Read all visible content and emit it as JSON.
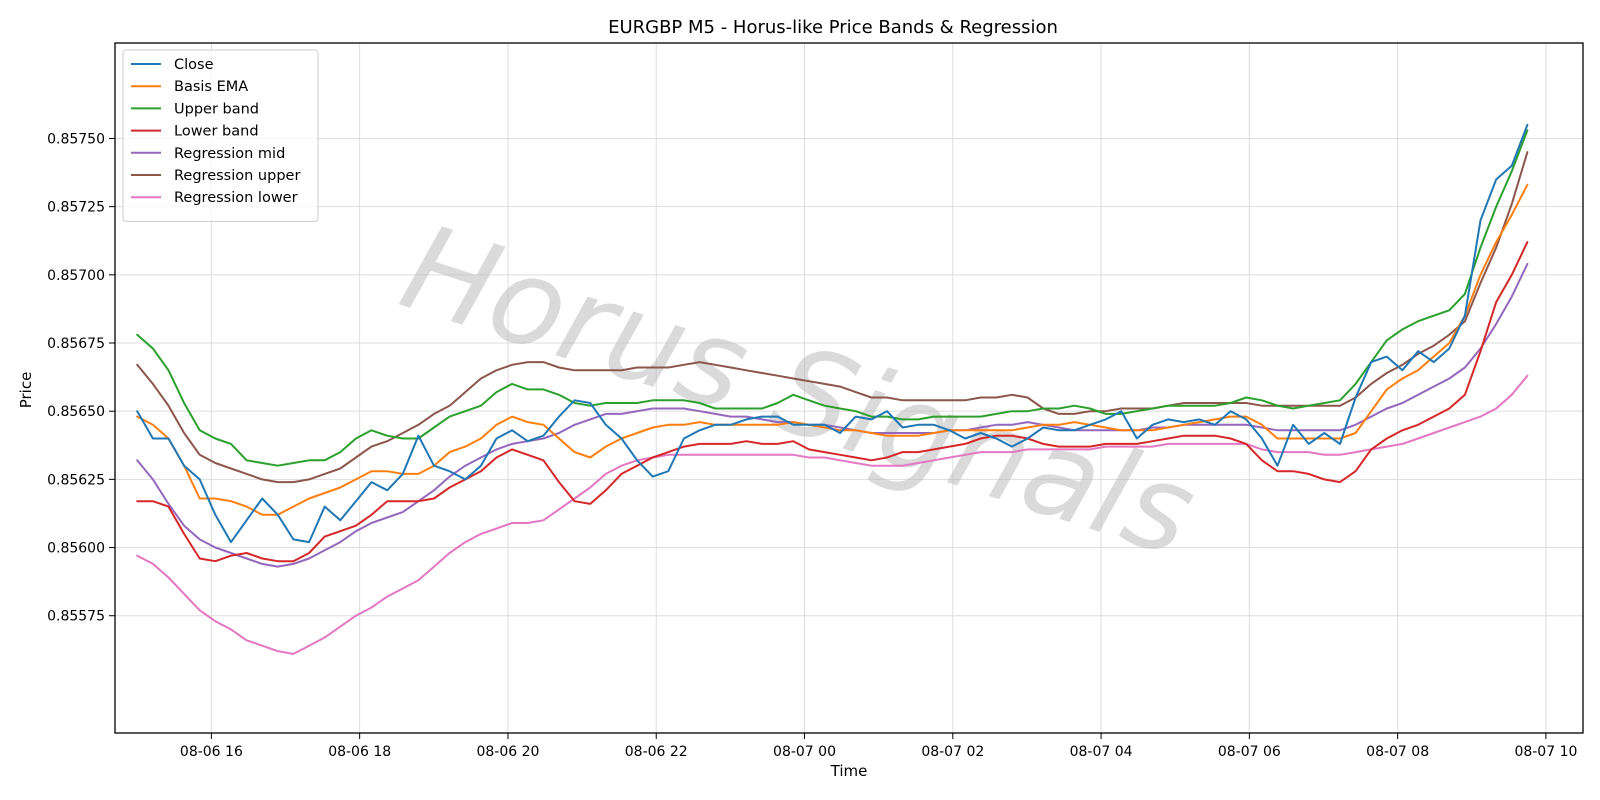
{
  "chart_data": {
    "type": "line",
    "title": "EURGBP M5 - Horus-like Price Bands & Regression",
    "xlabel": "Time",
    "ylabel": "Price",
    "watermark": "Horus Signals",
    "grid": true,
    "legend_position": "top-left",
    "xlim": [
      "08-06 14:42",
      "08-07 10:30"
    ],
    "ylim": [
      0.85532,
      0.85785
    ],
    "x_ticks": [
      "08-06 16",
      "08-06 18",
      "08-06 20",
      "08-06 22",
      "08-07 00",
      "08-07 02",
      "08-07 04",
      "08-07 06",
      "08-07 08",
      "08-07 10"
    ],
    "y_ticks": [
      "0.85575",
      "0.85600",
      "0.85625",
      "0.85650",
      "0.85675",
      "0.85700",
      "0.85725",
      "0.85750"
    ],
    "x_start": "08-06 15:00",
    "x_end": "08-07 09:45",
    "x_step_minutes": 15,
    "series": [
      {
        "name": "Close",
        "color": "#1f77b4",
        "values": [
          0.8565,
          0.8564,
          0.8564,
          0.8563,
          0.85625,
          0.85612,
          0.85602,
          0.8561,
          0.85618,
          0.85612,
          0.85603,
          0.85602,
          0.85615,
          0.8561,
          0.85617,
          0.85624,
          0.85621,
          0.85627,
          0.85641,
          0.8563,
          0.85628,
          0.85625,
          0.8563,
          0.8564,
          0.85643,
          0.85639,
          0.85641,
          0.85648,
          0.85654,
          0.85653,
          0.85645,
          0.8564,
          0.85632,
          0.85626,
          0.85628,
          0.8564,
          0.85643,
          0.85645,
          0.85645,
          0.85647,
          0.85648,
          0.85648,
          0.85645,
          0.85645,
          0.85645,
          0.85642,
          0.85648,
          0.85647,
          0.8565,
          0.85644,
          0.85645,
          0.85645,
          0.85643,
          0.8564,
          0.85642,
          0.8564,
          0.85637,
          0.8564,
          0.85644,
          0.85643,
          0.85643,
          0.85645,
          0.85647,
          0.8565,
          0.8564,
          0.85645,
          0.85647,
          0.85646,
          0.85647,
          0.85645,
          0.8565,
          0.85647,
          0.8564,
          0.8563,
          0.85645,
          0.85638,
          0.85642,
          0.85638,
          0.85655,
          0.85668,
          0.8567,
          0.85665,
          0.85672,
          0.85668,
          0.85673,
          0.85685,
          0.8572,
          0.85735,
          0.8574,
          0.85755
        ]
      },
      {
        "name": "Basis EMA",
        "color": "#ff7f0e",
        "values": [
          0.85648,
          0.85645,
          0.8564,
          0.8563,
          0.85618,
          0.85618,
          0.85617,
          0.85615,
          0.85612,
          0.85612,
          0.85615,
          0.85618,
          0.8562,
          0.85622,
          0.85625,
          0.85628,
          0.85628,
          0.85627,
          0.85627,
          0.8563,
          0.85635,
          0.85637,
          0.8564,
          0.85645,
          0.85648,
          0.85646,
          0.85645,
          0.8564,
          0.85635,
          0.85633,
          0.85637,
          0.8564,
          0.85642,
          0.85644,
          0.85645,
          0.85645,
          0.85646,
          0.85645,
          0.85645,
          0.85645,
          0.85645,
          0.85645,
          0.85646,
          0.85645,
          0.85644,
          0.85643,
          0.85643,
          0.85642,
          0.85641,
          0.85641,
          0.85641,
          0.85642,
          0.85643,
          0.85643,
          0.85643,
          0.85643,
          0.85643,
          0.85644,
          0.85645,
          0.85645,
          0.85646,
          0.85645,
          0.85644,
          0.85643,
          0.85643,
          0.85643,
          0.85644,
          0.85645,
          0.85646,
          0.85647,
          0.85648,
          0.85648,
          0.85645,
          0.8564,
          0.8564,
          0.8564,
          0.8564,
          0.8564,
          0.85642,
          0.8565,
          0.85658,
          0.85662,
          0.85665,
          0.8567,
          0.85675,
          0.85685,
          0.857,
          0.85712,
          0.85722,
          0.85733
        ]
      },
      {
        "name": "Upper band",
        "color": "#2ca02c",
        "values": [
          0.85678,
          0.85673,
          0.85665,
          0.85653,
          0.85643,
          0.8564,
          0.85638,
          0.85632,
          0.85631,
          0.8563,
          0.85631,
          0.85632,
          0.85632,
          0.85635,
          0.8564,
          0.85643,
          0.85641,
          0.8564,
          0.8564,
          0.85644,
          0.85648,
          0.8565,
          0.85652,
          0.85657,
          0.8566,
          0.85658,
          0.85658,
          0.85656,
          0.85653,
          0.85652,
          0.85653,
          0.85653,
          0.85653,
          0.85654,
          0.85654,
          0.85654,
          0.85653,
          0.85651,
          0.85651,
          0.85651,
          0.85651,
          0.85653,
          0.85656,
          0.85654,
          0.85652,
          0.85651,
          0.8565,
          0.85648,
          0.85648,
          0.85647,
          0.85647,
          0.85648,
          0.85648,
          0.85648,
          0.85648,
          0.85649,
          0.8565,
          0.8565,
          0.85651,
          0.85651,
          0.85652,
          0.85651,
          0.85649,
          0.85649,
          0.8565,
          0.85651,
          0.85652,
          0.85652,
          0.85652,
          0.85652,
          0.85653,
          0.85655,
          0.85654,
          0.85652,
          0.85651,
          0.85652,
          0.85653,
          0.85654,
          0.8566,
          0.85668,
          0.85676,
          0.8568,
          0.85683,
          0.85685,
          0.85687,
          0.85693,
          0.8571,
          0.85725,
          0.85738,
          0.85753
        ]
      },
      {
        "name": "Lower band",
        "color": "#d62728",
        "values": [
          0.85617,
          0.85617,
          0.85615,
          0.85605,
          0.85596,
          0.85595,
          0.85597,
          0.85598,
          0.85596,
          0.85595,
          0.85595,
          0.85598,
          0.85604,
          0.85606,
          0.85608,
          0.85612,
          0.85617,
          0.85617,
          0.85617,
          0.85618,
          0.85622,
          0.85625,
          0.85628,
          0.85633,
          0.85636,
          0.85634,
          0.85632,
          0.85624,
          0.85617,
          0.85616,
          0.85621,
          0.85627,
          0.8563,
          0.85633,
          0.85635,
          0.85637,
          0.85638,
          0.85638,
          0.85638,
          0.85639,
          0.85638,
          0.85638,
          0.85639,
          0.85636,
          0.85635,
          0.85634,
          0.85633,
          0.85632,
          0.85633,
          0.85635,
          0.85635,
          0.85636,
          0.85637,
          0.85638,
          0.8564,
          0.85641,
          0.85641,
          0.8564,
          0.85638,
          0.85637,
          0.85637,
          0.85637,
          0.85638,
          0.85638,
          0.85638,
          0.85639,
          0.8564,
          0.85641,
          0.85641,
          0.85641,
          0.8564,
          0.85638,
          0.85632,
          0.85628,
          0.85628,
          0.85627,
          0.85625,
          0.85624,
          0.85628,
          0.85636,
          0.8564,
          0.85643,
          0.85645,
          0.85648,
          0.85651,
          0.85656,
          0.85672,
          0.8569,
          0.857,
          0.85712
        ]
      },
      {
        "name": "Regression mid",
        "color": "#9467bd",
        "values": [
          0.85632,
          0.85625,
          0.85616,
          0.85608,
          0.85603,
          0.856,
          0.85598,
          0.85596,
          0.85594,
          0.85593,
          0.85594,
          0.85596,
          0.85599,
          0.85602,
          0.85606,
          0.85609,
          0.85611,
          0.85613,
          0.85617,
          0.85621,
          0.85626,
          0.8563,
          0.85633,
          0.85636,
          0.85638,
          0.85639,
          0.8564,
          0.85642,
          0.85645,
          0.85647,
          0.85649,
          0.85649,
          0.8565,
          0.85651,
          0.85651,
          0.85651,
          0.8565,
          0.85649,
          0.85648,
          0.85648,
          0.85647,
          0.85646,
          0.85646,
          0.85645,
          0.85645,
          0.85644,
          0.85643,
          0.85642,
          0.85642,
          0.85642,
          0.85642,
          0.85642,
          0.85643,
          0.85643,
          0.85644,
          0.85645,
          0.85645,
          0.85646,
          0.85645,
          0.85644,
          0.85643,
          0.85643,
          0.85643,
          0.85643,
          0.85643,
          0.85644,
          0.85644,
          0.85645,
          0.85645,
          0.85645,
          0.85645,
          0.85645,
          0.85644,
          0.85643,
          0.85643,
          0.85643,
          0.85643,
          0.85643,
          0.85645,
          0.85648,
          0.85651,
          0.85653,
          0.85656,
          0.85659,
          0.85662,
          0.85666,
          0.85673,
          0.85682,
          0.85692,
          0.85704
        ]
      },
      {
        "name": "Regression upper",
        "color": "#8c564b",
        "values": [
          0.85667,
          0.8566,
          0.85652,
          0.85642,
          0.85634,
          0.85631,
          0.85629,
          0.85627,
          0.85625,
          0.85624,
          0.85624,
          0.85625,
          0.85627,
          0.85629,
          0.85633,
          0.85637,
          0.85639,
          0.85642,
          0.85645,
          0.85649,
          0.85652,
          0.85657,
          0.85662,
          0.85665,
          0.85667,
          0.85668,
          0.85668,
          0.85666,
          0.85665,
          0.85665,
          0.85665,
          0.85665,
          0.85666,
          0.85666,
          0.85666,
          0.85667,
          0.85668,
          0.85667,
          0.85666,
          0.85665,
          0.85664,
          0.85663,
          0.85662,
          0.85661,
          0.8566,
          0.85659,
          0.85657,
          0.85655,
          0.85655,
          0.85654,
          0.85654,
          0.85654,
          0.85654,
          0.85654,
          0.85655,
          0.85655,
          0.85656,
          0.85655,
          0.85651,
          0.85649,
          0.85649,
          0.8565,
          0.8565,
          0.85651,
          0.85651,
          0.85651,
          0.85652,
          0.85653,
          0.85653,
          0.85653,
          0.85653,
          0.85653,
          0.85652,
          0.85652,
          0.85652,
          0.85652,
          0.85652,
          0.85652,
          0.85655,
          0.8566,
          0.85664,
          0.85667,
          0.85671,
          0.85674,
          0.85678,
          0.85683,
          0.85697,
          0.8571,
          0.85726,
          0.85745
        ]
      },
      {
        "name": "Regression lower",
        "color": "#e377c2",
        "values": [
          0.85597,
          0.85594,
          0.85589,
          0.85583,
          0.85577,
          0.85573,
          0.8557,
          0.85566,
          0.85564,
          0.85562,
          0.85561,
          0.85564,
          0.85567,
          0.85571,
          0.85575,
          0.85578,
          0.85582,
          0.85585,
          0.85588,
          0.85593,
          0.85598,
          0.85602,
          0.85605,
          0.85607,
          0.85609,
          0.85609,
          0.8561,
          0.85614,
          0.85618,
          0.85622,
          0.85627,
          0.8563,
          0.85632,
          0.85633,
          0.85634,
          0.85634,
          0.85634,
          0.85634,
          0.85634,
          0.85634,
          0.85634,
          0.85634,
          0.85634,
          0.85633,
          0.85633,
          0.85632,
          0.85631,
          0.8563,
          0.8563,
          0.8563,
          0.85631,
          0.85632,
          0.85633,
          0.85634,
          0.85635,
          0.85635,
          0.85635,
          0.85636,
          0.85636,
          0.85636,
          0.85636,
          0.85636,
          0.85637,
          0.85637,
          0.85637,
          0.85637,
          0.85638,
          0.85638,
          0.85638,
          0.85638,
          0.85638,
          0.85638,
          0.85636,
          0.85635,
          0.85635,
          0.85635,
          0.85634,
          0.85634,
          0.85635,
          0.85636,
          0.85637,
          0.85638,
          0.8564,
          0.85642,
          0.85644,
          0.85646,
          0.85648,
          0.85651,
          0.85656,
          0.85663
        ]
      }
    ]
  }
}
